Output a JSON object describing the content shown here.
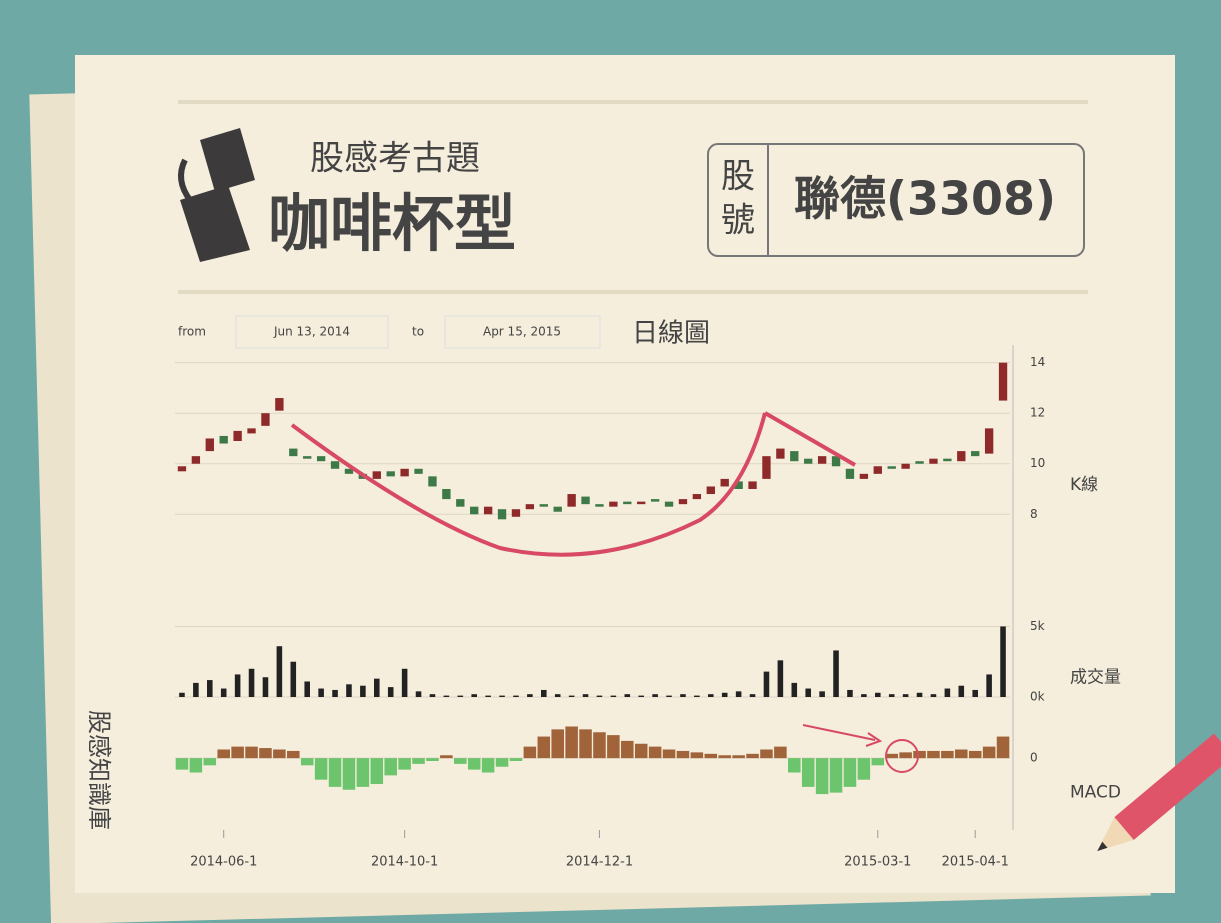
{
  "header": {
    "kicker": "股感考古題",
    "title": "咖啡杯型",
    "code_label_1": "股",
    "code_label_2": "號",
    "stock": "聯德(3308)"
  },
  "range": {
    "from_label": "from",
    "from": "Jun 13, 2014",
    "to_label": "to",
    "to": "Apr 15, 2015",
    "view": "日線圖"
  },
  "side_text": "股感知識庫",
  "chart_data": [
    {
      "type": "candlestick",
      "label": "K線",
      "categories": [
        null,
        null,
        null,
        "2014-06-1",
        null,
        null,
        null,
        null,
        null,
        null,
        null,
        null,
        null,
        null,
        null,
        null,
        "2014-10-1",
        null,
        null,
        null,
        null,
        null,
        null,
        null,
        null,
        null,
        null,
        null,
        null,
        null,
        "2014-12-1",
        null,
        null,
        null,
        null,
        null,
        null,
        null,
        null,
        null,
        null,
        null,
        null,
        null,
        null,
        null,
        null,
        null,
        null,
        null,
        "2015-03-1",
        null,
        null,
        null,
        null,
        null,
        null,
        "2015-04-1",
        null,
        null
      ],
      "open": [
        9.7,
        10.0,
        10.5,
        11.1,
        10.9,
        11.2,
        11.5,
        12.1,
        10.6,
        10.3,
        10.3,
        10.1,
        9.8,
        9.6,
        9.4,
        9.7,
        9.5,
        9.8,
        9.5,
        9.0,
        8.6,
        8.3,
        8.0,
        8.2,
        7.9,
        8.2,
        8.4,
        8.3,
        8.3,
        8.7,
        8.4,
        8.3,
        8.5,
        8.4,
        8.6,
        8.5,
        8.4,
        8.6,
        8.8,
        9.1,
        9.3,
        9.0,
        9.4,
        10.2,
        10.5,
        10.2,
        10.0,
        10.3,
        9.8,
        9.4,
        9.6,
        9.9,
        9.8,
        10.1,
        10.0,
        10.2,
        10.1,
        10.5,
        10.4,
        12.5
      ],
      "close": [
        9.9,
        10.3,
        11.0,
        10.8,
        11.3,
        11.4,
        12.0,
        12.6,
        10.3,
        10.2,
        10.1,
        9.8,
        9.6,
        9.4,
        9.7,
        9.5,
        9.8,
        9.6,
        9.1,
        8.6,
        8.3,
        8.0,
        8.3,
        7.8,
        8.2,
        8.4,
        8.3,
        8.1,
        8.8,
        8.4,
        8.3,
        8.5,
        8.4,
        8.5,
        8.5,
        8.3,
        8.6,
        8.8,
        9.1,
        9.4,
        9.0,
        9.3,
        10.3,
        10.6,
        10.1,
        10.0,
        10.3,
        9.9,
        9.4,
        9.6,
        9.9,
        9.8,
        10.0,
        10.0,
        10.2,
        10.1,
        10.5,
        10.3,
        11.4,
        14.0
      ],
      "up_color": "#8e2a2a",
      "down_color": "#3d7a48",
      "ylim": [
        5.2,
        14.7
      ],
      "yticks": [
        8,
        10,
        12,
        14
      ],
      "grid": true
    },
    {
      "type": "bar",
      "label": "成交量",
      "color": "#222222",
      "values": [
        0.3,
        1.0,
        1.2,
        0.6,
        1.6,
        2.0,
        1.4,
        3.6,
        2.5,
        1.1,
        0.6,
        0.5,
        0.9,
        0.8,
        1.3,
        0.7,
        2.0,
        0.4,
        0.2,
        0.1,
        0.1,
        0.2,
        0.1,
        0.1,
        0.1,
        0.2,
        0.5,
        0.2,
        0.1,
        0.2,
        0.1,
        0.1,
        0.2,
        0.1,
        0.2,
        0.1,
        0.2,
        0.1,
        0.2,
        0.3,
        0.4,
        0.2,
        1.8,
        2.6,
        1.0,
        0.6,
        0.4,
        3.3,
        0.5,
        0.2,
        0.3,
        0.2,
        0.2,
        0.3,
        0.2,
        0.6,
        0.8,
        0.5,
        1.6,
        5.0
      ],
      "ylim": [
        0,
        5.6
      ],
      "yticks": [
        {
          "value": 5,
          "label": "5k"
        },
        {
          "value": 0,
          "label": "0k"
        }
      ],
      "grid": true
    },
    {
      "type": "histogram-bars",
      "label": "MACD",
      "pos_color": "#a0633a",
      "neg_color": "#6cc46c",
      "values": [
        -0.08,
        -0.1,
        -0.05,
        0.06,
        0.08,
        0.08,
        0.07,
        0.06,
        0.05,
        -0.05,
        -0.15,
        -0.2,
        -0.22,
        -0.2,
        -0.18,
        -0.12,
        -0.08,
        -0.04,
        -0.02,
        0.02,
        -0.04,
        -0.08,
        -0.1,
        -0.06,
        -0.02,
        0.08,
        0.15,
        0.2,
        0.22,
        0.2,
        0.18,
        0.16,
        0.12,
        0.1,
        0.08,
        0.06,
        0.05,
        0.04,
        0.03,
        0.02,
        0.02,
        0.03,
        0.06,
        0.08,
        -0.1,
        -0.2,
        -0.25,
        -0.24,
        -0.2,
        -0.15,
        -0.05,
        0.03,
        0.04,
        0.05,
        0.05,
        0.05,
        0.06,
        0.05,
        0.08,
        0.15
      ],
      "ylim": [
        -0.5,
        0.3
      ],
      "yticks": [
        0
      ],
      "grid": true
    }
  ]
}
